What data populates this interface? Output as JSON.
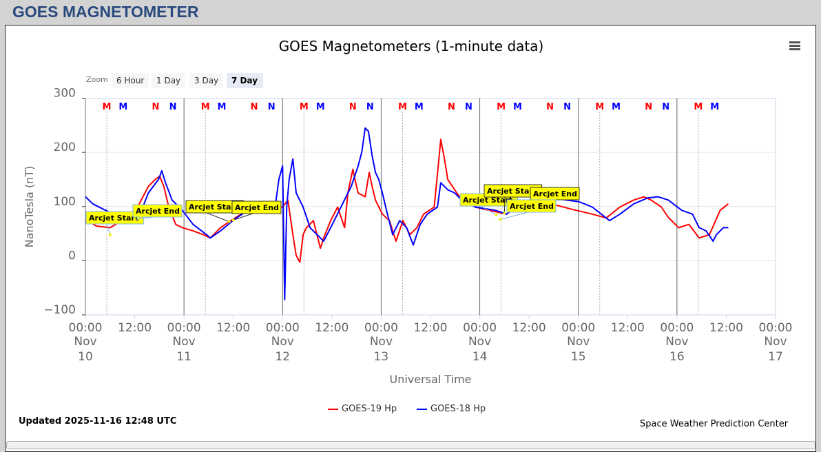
{
  "page_title": "GOES MAGNETOMETER",
  "zoom": {
    "label": "Zoom",
    "buttons": [
      "6 Hour",
      "1 Day",
      "3 Day",
      "7 Day"
    ],
    "selected": "7 Day"
  },
  "updated": "Updated 2025-11-16 12:48 UTC",
  "credit": "Space Weather Prediction Center",
  "colors": {
    "goes19": "#ff0000",
    "goes18": "#0000ff"
  },
  "chart_data": {
    "type": "line",
    "title": "GOES Magnetometers (1-minute data)",
    "xlabel": "Universal Time",
    "ylabel": "NanoTesla (nT)",
    "ylim": [
      -100,
      300
    ],
    "yticks": [
      -100,
      0,
      100,
      200,
      300
    ],
    "x_unit": "hours since 2025-11-10 00:00 UTC",
    "xlim": [
      0,
      168
    ],
    "xticks": [
      {
        "t": 0,
        "time": "00:00",
        "date": [
          "Nov",
          "10"
        ]
      },
      {
        "t": 12,
        "time": "12:00",
        "date": [
          "",
          ""
        ]
      },
      {
        "t": 24,
        "time": "00:00",
        "date": [
          "Nov",
          "11"
        ]
      },
      {
        "t": 36,
        "time": "12:00",
        "date": [
          "",
          ""
        ]
      },
      {
        "t": 48,
        "time": "00:00",
        "date": [
          "Nov",
          "12"
        ]
      },
      {
        "t": 60,
        "time": "12:00",
        "date": [
          "",
          ""
        ]
      },
      {
        "t": 72,
        "time": "00:00",
        "date": [
          "Nov",
          "13"
        ]
      },
      {
        "t": 84,
        "time": "12:00",
        "date": [
          "",
          ""
        ]
      },
      {
        "t": 96,
        "time": "00:00",
        "date": [
          "Nov",
          "14"
        ]
      },
      {
        "t": 108,
        "time": "12:00",
        "date": [
          "",
          ""
        ]
      },
      {
        "t": 120,
        "time": "00:00",
        "date": [
          "Nov",
          "15"
        ]
      },
      {
        "t": 132,
        "time": "12:00",
        "date": [
          "",
          ""
        ]
      },
      {
        "t": 144,
        "time": "00:00",
        "date": [
          "Nov",
          "16"
        ]
      },
      {
        "t": 156,
        "time": "12:00",
        "date": [
          "",
          ""
        ]
      },
      {
        "t": 168,
        "time": "00:00",
        "date": [
          "Nov",
          "17"
        ]
      }
    ],
    "series": [
      {
        "name": "GOES-19 Hp",
        "color": "#ff0000",
        "points": [
          [
            0,
            76
          ],
          [
            2.7,
            64
          ],
          [
            6,
            61
          ],
          [
            9.4,
            76
          ],
          [
            12.7,
            99
          ],
          [
            15.3,
            137
          ],
          [
            17,
            150
          ],
          [
            18.1,
            156
          ],
          [
            19.1,
            137
          ],
          [
            20.3,
            99
          ],
          [
            22,
            67
          ],
          [
            23.6,
            61
          ],
          [
            26.2,
            55
          ],
          [
            28.7,
            48
          ],
          [
            30.4,
            42
          ],
          [
            32.9,
            61
          ],
          [
            35.4,
            74
          ],
          [
            37.9,
            86
          ],
          [
            42.1,
            99
          ],
          [
            45.5,
            99
          ],
          [
            48,
            99
          ],
          [
            49.3,
            112
          ],
          [
            50.5,
            48
          ],
          [
            51.3,
            10
          ],
          [
            52.2,
            -3
          ],
          [
            53,
            48
          ],
          [
            53.8,
            61
          ],
          [
            55.5,
            74
          ],
          [
            57.2,
            23
          ],
          [
            58,
            42
          ],
          [
            59.7,
            74
          ],
          [
            61.4,
            99
          ],
          [
            63.1,
            61
          ],
          [
            63.9,
            125
          ],
          [
            65.1,
            169
          ],
          [
            65.6,
            150
          ],
          [
            66.4,
            125
          ],
          [
            68.1,
            118
          ],
          [
            69.1,
            163
          ],
          [
            69.8,
            137
          ],
          [
            70.6,
            112
          ],
          [
            72.3,
            86
          ],
          [
            74,
            74
          ],
          [
            75.6,
            36
          ],
          [
            77.3,
            74
          ],
          [
            79,
            48
          ],
          [
            80.7,
            61
          ],
          [
            82.3,
            86
          ],
          [
            84.9,
            99
          ],
          [
            85.9,
            175
          ],
          [
            86.5,
            224
          ],
          [
            87.4,
            188
          ],
          [
            88.2,
            150
          ],
          [
            89.9,
            131
          ],
          [
            91.6,
            112
          ],
          [
            94.9,
            99
          ],
          [
            98.3,
            93
          ],
          [
            102.5,
            86
          ],
          [
            105,
            99
          ],
          [
            108.3,
            112
          ],
          [
            113.4,
            105
          ],
          [
            118.4,
            95
          ],
          [
            123.4,
            86
          ],
          [
            126.8,
            79
          ],
          [
            130.1,
            99
          ],
          [
            133.5,
            112
          ],
          [
            136,
            118
          ],
          [
            137.7,
            112
          ],
          [
            140.2,
            99
          ],
          [
            141.9,
            80
          ],
          [
            144.4,
            61
          ],
          [
            146.9,
            67
          ],
          [
            149.4,
            42
          ],
          [
            151.9,
            48
          ],
          [
            154.5,
            93
          ],
          [
            156.5,
            105
          ]
        ]
      },
      {
        "name": "GOES-18 Hp",
        "color": "#0000ff",
        "points": [
          [
            0,
            118
          ],
          [
            1.8,
            105
          ],
          [
            4.4,
            95
          ],
          [
            6.9,
            86
          ],
          [
            9.4,
            84
          ],
          [
            12.7,
            74
          ],
          [
            15.3,
            125
          ],
          [
            17.8,
            150
          ],
          [
            18.6,
            166
          ],
          [
            19.5,
            144
          ],
          [
            21.1,
            112
          ],
          [
            23.6,
            93
          ],
          [
            26.2,
            67
          ],
          [
            29.5,
            48
          ],
          [
            30.4,
            42
          ],
          [
            32.9,
            55
          ],
          [
            36.2,
            76
          ],
          [
            39.6,
            93
          ],
          [
            42.9,
            99
          ],
          [
            46.3,
            105
          ],
          [
            47.1,
            150
          ],
          [
            48,
            175
          ],
          [
            48.5,
            -72
          ],
          [
            49,
            99
          ],
          [
            49.6,
            150
          ],
          [
            50.5,
            188
          ],
          [
            51.3,
            125
          ],
          [
            53,
            99
          ],
          [
            54.7,
            61
          ],
          [
            56.4,
            48
          ],
          [
            58,
            36
          ],
          [
            59.7,
            61
          ],
          [
            62.2,
            99
          ],
          [
            64.7,
            137
          ],
          [
            66.4,
            175
          ],
          [
            67.3,
            201
          ],
          [
            68.1,
            245
          ],
          [
            68.9,
            239
          ],
          [
            69.8,
            194
          ],
          [
            70.6,
            163
          ],
          [
            71.4,
            150
          ],
          [
            72.3,
            125
          ],
          [
            73.1,
            99
          ],
          [
            74.8,
            48
          ],
          [
            76.5,
            74
          ],
          [
            78.2,
            61
          ],
          [
            79.8,
            29
          ],
          [
            81.5,
            67
          ],
          [
            83.2,
            86
          ],
          [
            85.7,
            99
          ],
          [
            86.5,
            144
          ],
          [
            88.2,
            131
          ],
          [
            89.9,
            125
          ],
          [
            91.6,
            112
          ],
          [
            94.9,
            99
          ],
          [
            99.9,
            93
          ],
          [
            102.5,
            86
          ],
          [
            105,
            99
          ],
          [
            110,
            112
          ],
          [
            115.1,
            114
          ],
          [
            120.1,
            109
          ],
          [
            123.4,
            99
          ],
          [
            127.6,
            74
          ],
          [
            130.1,
            86
          ],
          [
            133.5,
            105
          ],
          [
            136.9,
            116
          ],
          [
            139.4,
            118
          ],
          [
            141.9,
            112
          ],
          [
            145.2,
            93
          ],
          [
            147.8,
            86
          ],
          [
            149.4,
            61
          ],
          [
            151.1,
            55
          ],
          [
            152.8,
            36
          ],
          [
            153.6,
            48
          ],
          [
            155.3,
            61
          ],
          [
            156.5,
            61
          ]
        ]
      }
    ],
    "markers": [
      {
        "label": "M",
        "color": "#ff0000",
        "times": [
          5.2,
          29.2,
          53.2,
          77.2,
          101.2,
          125.2,
          149.2
        ]
      },
      {
        "label": "M",
        "color": "#0000ff",
        "times": [
          9.2,
          33.2,
          57.2,
          81.2,
          105.2,
          129.2,
          153.2
        ]
      },
      {
        "label": "N",
        "color": "#ff0000",
        "times": [
          17.1,
          41.1,
          65.1,
          89.1,
          113.1,
          137.1
        ]
      },
      {
        "label": "N",
        "color": "#0000ff",
        "times": [
          21.3,
          45.3,
          69.3,
          93.3,
          117.3,
          141.3
        ]
      }
    ],
    "annotations": [
      {
        "label": "Arcjet Start",
        "t": 6,
        "v": 48,
        "border": "#7cb5ec"
      },
      {
        "label": "Arcjet End",
        "t": 12,
        "v": 76,
        "border": "#7cb5ec"
      },
      {
        "label": "Arcjet Start",
        "t": 35,
        "v": 72,
        "border": "#333333"
      },
      {
        "label": "Arcjet End",
        "t": 36,
        "v": 75,
        "border": "#333333"
      },
      {
        "label": "Arcjet Start",
        "t": 100,
        "v": 85,
        "border": "#7cb5ec"
      },
      {
        "label": "Arcjet Start",
        "t": 102,
        "v": 88,
        "border": "#333333"
      },
      {
        "label": "Arcjet End",
        "t": 104,
        "v": 95,
        "border": "#333333"
      },
      {
        "label": "Arcjet End",
        "t": 101,
        "v": 76,
        "border": "#7cb5ec"
      }
    ],
    "legend": "bottom-center",
    "grid": true
  }
}
